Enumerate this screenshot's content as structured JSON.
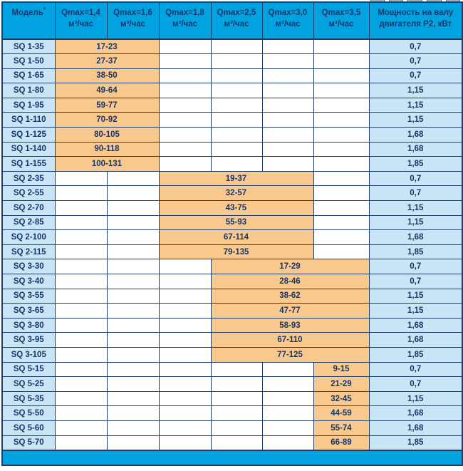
{
  "colors": {
    "header_cyan": "#00a3e0",
    "light_blue": "#c8e4f5",
    "orange": "#f8c88c",
    "navy_text": "#17366b",
    "border_navy": "#1d3d6e",
    "empty_white": "#ffffff"
  },
  "header": {
    "model": {
      "label": "Модель",
      "sup": "*"
    },
    "q_columns": [
      {
        "label": "Qmax=1,4",
        "unit": "м³/час"
      },
      {
        "label": "Qmax=1,6",
        "unit": "м³/час"
      },
      {
        "label": "Qmax=1,8",
        "unit": "м³/час"
      },
      {
        "label": "Qmax=2,5",
        "unit": "м³/час"
      },
      {
        "label": "Qmax=3,0",
        "unit": "м³/час"
      },
      {
        "label": "Qmax=3,5",
        "unit": "м³/час"
      }
    ],
    "power": {
      "line1": "Мощность на валу",
      "line2": "двигателя P2, кВт"
    }
  },
  "sections": [
    {
      "name": "SQ 1",
      "orange_start_col": 1,
      "orange_colspan": 2,
      "rows": [
        {
          "model": "SQ 1-35",
          "range": "17-23",
          "power": "0,7"
        },
        {
          "model": "SQ 1-50",
          "range": "27-37",
          "power": "0,7"
        },
        {
          "model": "SQ 1-65",
          "range": "38-50",
          "power": "0,7"
        },
        {
          "model": "SQ 1-80",
          "range": "49-64",
          "power": "1,15"
        },
        {
          "model": "SQ 1-95",
          "range": "59-77",
          "power": "1,15"
        },
        {
          "model": "SQ 1-110",
          "range": "70-92",
          "power": "1,15"
        },
        {
          "model": "SQ 1-125",
          "range": "80-105",
          "power": "1,68"
        },
        {
          "model": "SQ 1-140",
          "range": "90-118",
          "power": "1,68"
        },
        {
          "model": "SQ 1-155",
          "range": "100-131",
          "power": "1,85"
        }
      ]
    },
    {
      "name": "SQ 2",
      "orange_start_col": 3,
      "orange_colspan": 3,
      "rows": [
        {
          "model": "SQ 2-35",
          "range": "19-37",
          "power": "0,7"
        },
        {
          "model": "SQ 2-55",
          "range": "32-57",
          "power": "0,7"
        },
        {
          "model": "SQ 2-70",
          "range": "43-75",
          "power": "1,15"
        },
        {
          "model": "SQ 2-85",
          "range": "55-93",
          "power": "1,15"
        },
        {
          "model": "SQ 2-100",
          "range": "67-114",
          "power": "1,68"
        },
        {
          "model": "SQ 2-115",
          "range": "79-135",
          "power": "1,85"
        }
      ]
    },
    {
      "name": "SQ 3",
      "orange_start_col": 4,
      "orange_colspan": 3,
      "rows": [
        {
          "model": "SQ 3-30",
          "range": "17-29",
          "power": "0,7"
        },
        {
          "model": "SQ 3-40",
          "range": "28-46",
          "power": "0,7"
        },
        {
          "model": "SQ 3-55",
          "range": "38-62",
          "power": "1,15"
        },
        {
          "model": "SQ 3-65",
          "range": "47-77",
          "power": "1,15"
        },
        {
          "model": "SQ 3-80",
          "range": "58-93",
          "power": "1,68"
        },
        {
          "model": "SQ 3-95",
          "range": "67-110",
          "power": "1,68"
        },
        {
          "model": "SQ 3-105",
          "range": "77-125",
          "power": "1,85"
        }
      ]
    },
    {
      "name": "SQ 5",
      "orange_start_col": 6,
      "orange_colspan": 1,
      "rows": [
        {
          "model": "SQ 5-15",
          "range": "9-15",
          "power": "0,7"
        },
        {
          "model": "SQ 5-25",
          "range": "21-29",
          "power": "0,7"
        },
        {
          "model": "SQ 5-35",
          "range": "32-45",
          "power": "1,15"
        },
        {
          "model": "SQ 5-50",
          "range": "44-59",
          "power": "1,68"
        },
        {
          "model": "SQ 5-60",
          "range": "55-74",
          "power": "1,68"
        },
        {
          "model": "SQ 5-70",
          "range": "66-89",
          "power": "1,85"
        }
      ]
    }
  ],
  "footer": {
    "label": ""
  }
}
